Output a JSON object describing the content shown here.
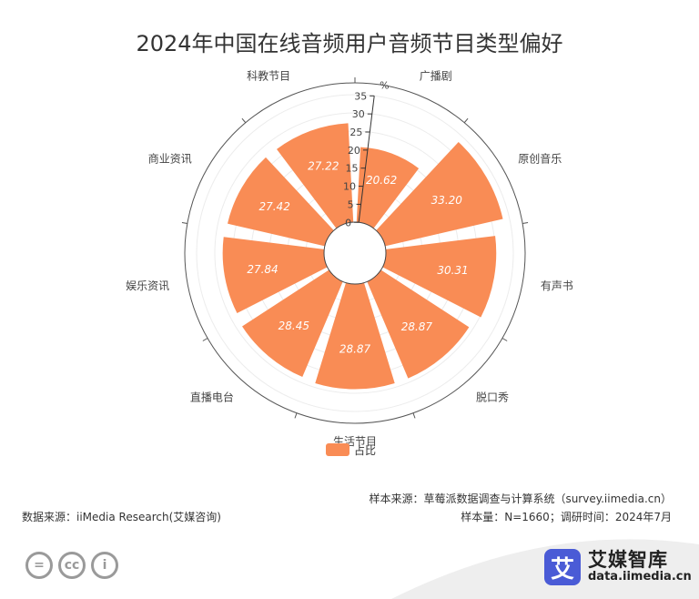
{
  "title": "2024年中国在线音频用户音频节目类型偏好",
  "chart_data": {
    "type": "polar-bar",
    "title": "2024年中国在线音频用户音频节目类型偏好",
    "categories": [
      "广播剧",
      "原创音乐",
      "有声书",
      "脱口秀",
      "生活节目",
      "直播电台",
      "娱乐资讯",
      "商业资讯",
      "科教节目"
    ],
    "series": [
      {
        "name": "占比",
        "values": [
          20.62,
          33.2,
          30.31,
          28.87,
          28.87,
          28.45,
          27.84,
          27.42,
          27.22
        ]
      }
    ],
    "radial_axis": {
      "unit": "%",
      "range": [
        0,
        35
      ],
      "ticks": [
        0,
        5,
        10,
        15,
        20,
        25,
        30,
        35
      ]
    },
    "data_labels": true,
    "legend_position": "bottom",
    "bar_color": "#f98c55"
  },
  "legend": {
    "label": "占比",
    "color": "#f98c55"
  },
  "footer": {
    "source": "数据来源：iiMedia Research(艾媒咨询)",
    "sample_source": "样本来源：草莓派数据调查与计算系统（survey.iimedia.cn）",
    "sample_info": "样本量：N=1660；调研时间：2024年7月"
  },
  "cc_icons": [
    "equals-icon",
    "cc-icon",
    "person-icon"
  ],
  "brand": {
    "logo_char": "艾",
    "name": "艾媒智库",
    "url": "data.iimedia.cn"
  }
}
